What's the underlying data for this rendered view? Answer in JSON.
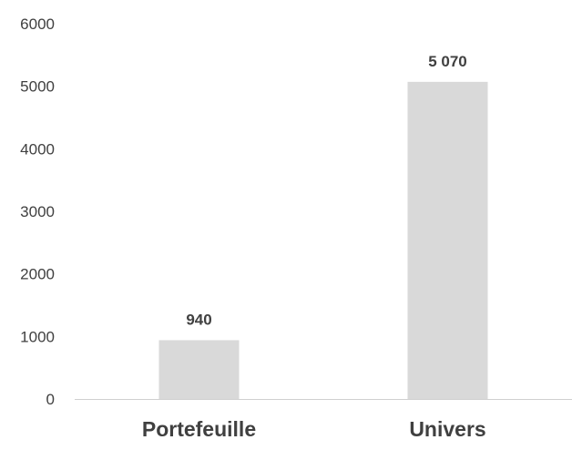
{
  "chart_data": {
    "type": "bar",
    "title": "",
    "xlabel": "",
    "ylabel": "",
    "categories": [
      "Portefeuille",
      "Univers"
    ],
    "values": [
      940,
      5070
    ],
    "data_labels": [
      "940",
      "5 070"
    ],
    "ylim": [
      0,
      6000
    ],
    "yticks": [
      0,
      1000,
      2000,
      3000,
      4000,
      5000,
      6000
    ],
    "ytick_labels": [
      "0",
      "1000",
      "2000",
      "3000",
      "4000",
      "5000",
      "6000"
    ],
    "grid": false,
    "legend": "none",
    "colors": {
      "bar": "#d9d9d9",
      "text": "#404040",
      "axis": "#d0d0d0"
    }
  }
}
